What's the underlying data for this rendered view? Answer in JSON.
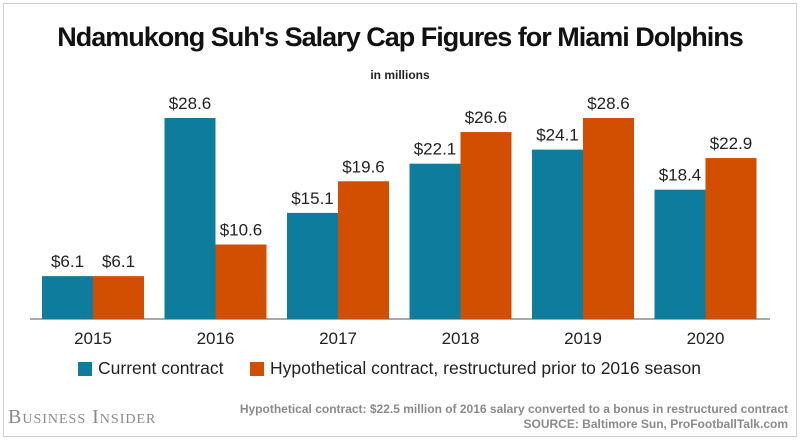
{
  "chart_data": {
    "type": "bar",
    "title": "Ndamukong Suh's Salary Cap Figures for Miami Dolphins",
    "subtitle": "in millions",
    "categories": [
      "2015",
      "2016",
      "2017",
      "2018",
      "2019",
      "2020"
    ],
    "series": [
      {
        "name": "Current contract",
        "color": "#0e7c9c",
        "values": [
          6.1,
          28.6,
          15.1,
          22.1,
          24.1,
          18.4
        ],
        "labels": [
          "$6.1",
          "$28.6",
          "$15.1",
          "$22.1",
          "$24.1",
          "$18.4"
        ]
      },
      {
        "name": "Hypothetical contract, restructured prior to 2016 season",
        "color": "#d24e00",
        "values": [
          6.1,
          10.6,
          19.6,
          26.6,
          28.6,
          22.9
        ],
        "labels": [
          "$6.1",
          "$10.6",
          "$19.6",
          "$26.6",
          "$28.6",
          "$22.9"
        ]
      }
    ],
    "ylim": [
      0,
      30
    ],
    "grid": false,
    "legend_position": "bottom"
  },
  "footer": {
    "brand": "Business Insider",
    "note": "Hypothetical contract: $22.5 million of 2016 salary converted to a bonus in restructured contract",
    "source": "SOURCE: Baltimore Sun, ProFootballTalk.com"
  }
}
